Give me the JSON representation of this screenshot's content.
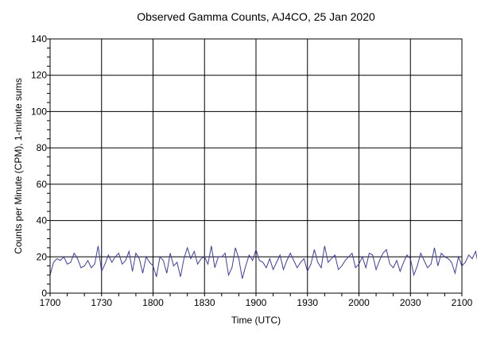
{
  "chart_data": {
    "type": "line",
    "title": "Observed Gamma Counts, AJ4CO, 25 Jan 2020",
    "xlabel": "Time (UTC)",
    "ylabel": "Counts per Minute (CPM), 1-minute sums",
    "xlim": [
      0,
      240
    ],
    "ylim": [
      0,
      140
    ],
    "x_ticks": [
      {
        "v": 0,
        "label": "1700"
      },
      {
        "v": 30,
        "label": "1730"
      },
      {
        "v": 60,
        "label": "1800"
      },
      {
        "v": 90,
        "label": "1830"
      },
      {
        "v": 120,
        "label": "1900"
      },
      {
        "v": 150,
        "label": "1930"
      },
      {
        "v": 180,
        "label": "2000"
      },
      {
        "v": 210,
        "label": "2030"
      },
      {
        "v": 240,
        "label": "2100"
      }
    ],
    "y_ticks": [
      0,
      20,
      40,
      60,
      80,
      100,
      120,
      140
    ],
    "grid": true,
    "x_step_minutes": 2,
    "series": [
      {
        "name": "CPM",
        "color": "#3c3ca8",
        "values": [
          10,
          17,
          19,
          18,
          20,
          16,
          17,
          22,
          19,
          14,
          15,
          18,
          14,
          16,
          26,
          12,
          16,
          21,
          17,
          20,
          22,
          16,
          18,
          23,
          12,
          22,
          19,
          11,
          20,
          17,
          15,
          9,
          20,
          18,
          11,
          22,
          15,
          17,
          9,
          19,
          25,
          19,
          23,
          16,
          19,
          20,
          16,
          26,
          14,
          20,
          20,
          22,
          10,
          14,
          25,
          19,
          8,
          15,
          21,
          18,
          24,
          18,
          17,
          14,
          19,
          13,
          17,
          21,
          13,
          18,
          22,
          18,
          14,
          17,
          19,
          12,
          16,
          24,
          17,
          14,
          26,
          17,
          19,
          21,
          13,
          15,
          18,
          20,
          22,
          14,
          16,
          20,
          14,
          22,
          21,
          13,
          18,
          22,
          24,
          16,
          14,
          18,
          12,
          17,
          21,
          19,
          10,
          15,
          22,
          18,
          14,
          16,
          25,
          15,
          22,
          20,
          19,
          17,
          11,
          20,
          15,
          17,
          21,
          19,
          23,
          14,
          16,
          13,
          20,
          15,
          23,
          13,
          17,
          27,
          14,
          20,
          21,
          18,
          10,
          23,
          17,
          21,
          14,
          20,
          13,
          18,
          23,
          12,
          16,
          22,
          19,
          14,
          23,
          19,
          21,
          13,
          17,
          19,
          11,
          19,
          16,
          24,
          12,
          22,
          18,
          14,
          17,
          15,
          20,
          16,
          18,
          22,
          17,
          12,
          21,
          18,
          14,
          19,
          12,
          22,
          16,
          20,
          13,
          23,
          21,
          18,
          14,
          24,
          15,
          22,
          17,
          20,
          26,
          12,
          18,
          21,
          16,
          25,
          11,
          17,
          22,
          14,
          21,
          24,
          17,
          15,
          13,
          19,
          17,
          16,
          23,
          19,
          18,
          20,
          15,
          14,
          13,
          12,
          17,
          21,
          22,
          19,
          14,
          16,
          12,
          11,
          13,
          17,
          19,
          22,
          20,
          17,
          15,
          14,
          16,
          20,
          22,
          12
        ]
      }
    ]
  }
}
